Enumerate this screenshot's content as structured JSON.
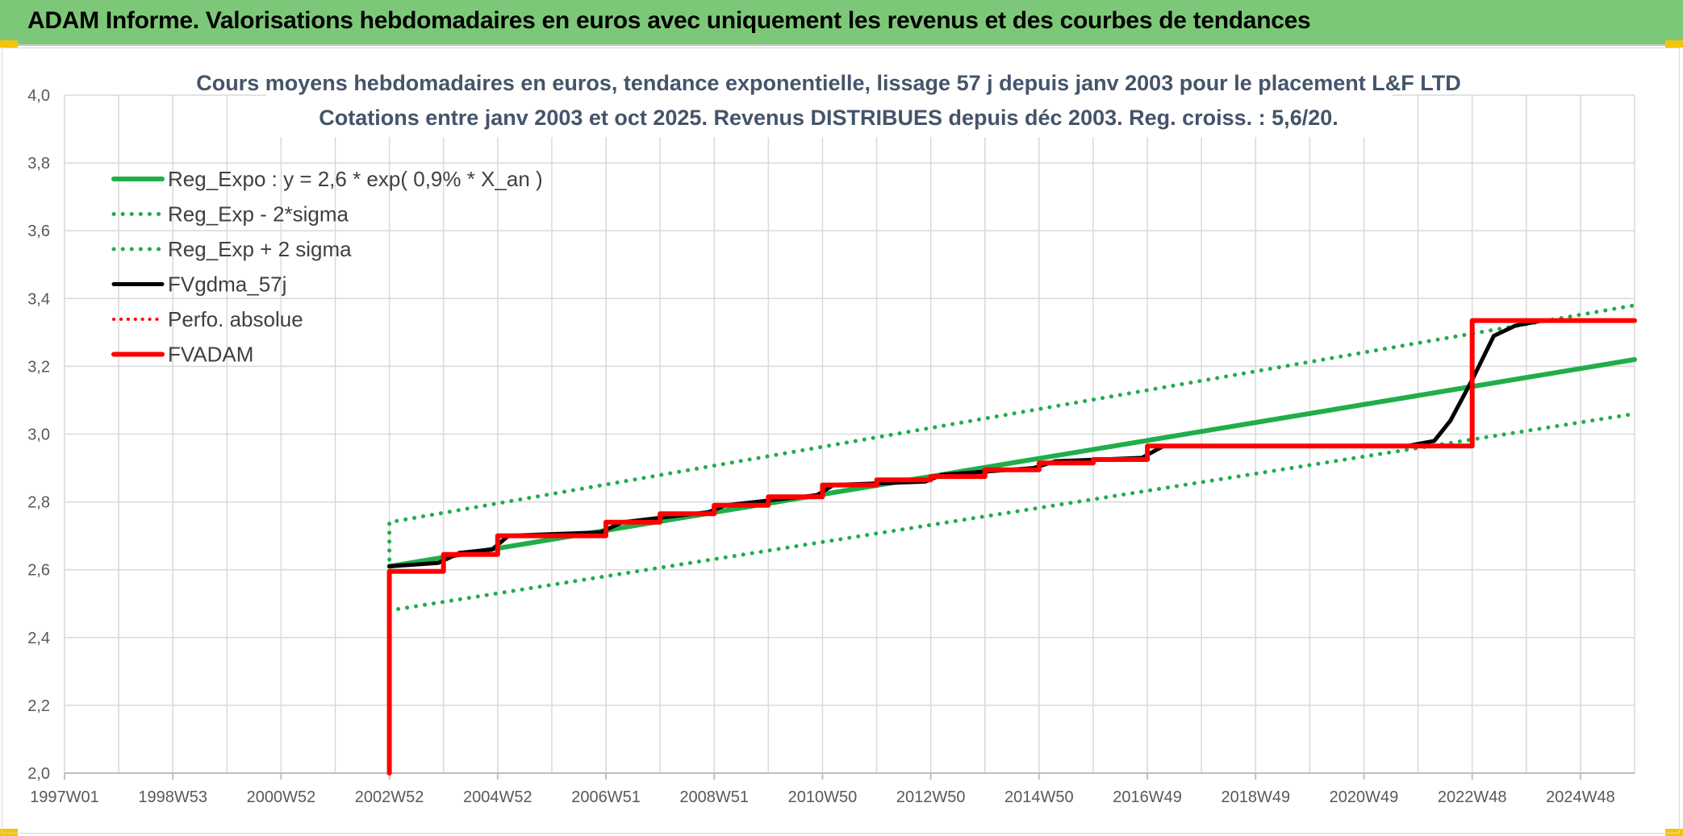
{
  "header": {
    "title": "ADAM Informe. Valorisations hebdomadaires en euros avec uniquement les revenus et des courbes de tendances"
  },
  "colors": {
    "banner": "#7dc878",
    "corner_accent": "#f2c40c",
    "green": "#1fae4b",
    "red": "#ff0000",
    "black": "#000000",
    "grid": "#d9d9d9",
    "title_text": "#44546a",
    "tick_text": "#595959"
  },
  "chart_data": {
    "type": "line",
    "title": "Cours moyens hebdomadaires en euros, tendance exponentielle, lissage 57 j depuis janv 2003 pour le placement L&F LTD",
    "subtitle": "Cotations entre janv 2003 et oct 2025. Revenus DISTRIBUES depuis déc 2003. Reg. croiss. : 5,6/20.",
    "xlabel": "",
    "ylabel": "",
    "x_axis": "year (decimal)",
    "xlim": [
      1997.0,
      2026.0
    ],
    "ylim": [
      2.0,
      4.0
    ],
    "y_ticks": [
      "2,0",
      "2,2",
      "2,4",
      "2,6",
      "2,8",
      "3,0",
      "3,2",
      "3,4",
      "3,6",
      "3,8",
      "4,0"
    ],
    "x_ticks": [
      {
        "x": 1997.0,
        "label": "1997W01"
      },
      {
        "x": 1999.0,
        "label": "1998W53"
      },
      {
        "x": 2001.0,
        "label": "2000W52"
      },
      {
        "x": 2003.0,
        "label": "2002W52"
      },
      {
        "x": 2005.0,
        "label": "2004W52"
      },
      {
        "x": 2007.0,
        "label": "2006W51"
      },
      {
        "x": 2009.0,
        "label": "2008W51"
      },
      {
        "x": 2011.0,
        "label": "2010W50"
      },
      {
        "x": 2013.0,
        "label": "2012W50"
      },
      {
        "x": 2015.0,
        "label": "2014W50"
      },
      {
        "x": 2017.0,
        "label": "2016W49"
      },
      {
        "x": 2019.0,
        "label": "2018W49"
      },
      {
        "x": 2021.0,
        "label": "2020W49"
      },
      {
        "x": 2023.0,
        "label": "2022W48"
      },
      {
        "x": 2025.0,
        "label": "2024W48"
      }
    ],
    "grid": true,
    "legend_position": "top-left",
    "series": [
      {
        "name": "Reg_Expo : y = 2,6 * exp( 0,9% *  X_an )",
        "color": "#1fae4b",
        "style": "solid",
        "width": 6,
        "x": [
          2003.0,
          2026.0
        ],
        "y": [
          2.61,
          3.22
        ]
      },
      {
        "name": "Reg_Exp - 2*sigma",
        "color": "#1fae4b",
        "style": "dotted",
        "width": 5,
        "x": [
          2003.0,
          2026.0
        ],
        "y": [
          2.48,
          3.06
        ]
      },
      {
        "name": "Reg_Exp + 2 sigma",
        "color": "#1fae4b",
        "style": "dotted",
        "width": 5,
        "x": [
          2003.0,
          2003.0,
          2026.0
        ],
        "y": [
          2.63,
          2.74,
          3.38
        ]
      },
      {
        "name": "FVgdma_57j",
        "color": "#000000",
        "style": "solid",
        "width": 5,
        "x": [
          2003.0,
          2003.9,
          2004.3,
          2004.9,
          2005.2,
          2006.9,
          2007.3,
          2008.9,
          2009.2,
          2010.9,
          2011.2,
          2012.9,
          2013.2,
          2014.9,
          2015.3,
          2016.9,
          2017.3,
          2021.8,
          2022.3,
          2022.6,
          2023.0,
          2023.4,
          2023.8,
          2024.3,
          2026.0
        ],
        "y": [
          2.61,
          2.62,
          2.65,
          2.66,
          2.7,
          2.71,
          2.74,
          2.77,
          2.79,
          2.82,
          2.85,
          2.86,
          2.88,
          2.9,
          2.92,
          2.93,
          2.965,
          2.965,
          2.98,
          3.04,
          3.16,
          3.29,
          3.32,
          3.335,
          3.335
        ]
      },
      {
        "name": "Perfo. absolue",
        "color": "#ff0000",
        "style": "dotted",
        "width": 4,
        "x": [],
        "y": []
      },
      {
        "name": "FVADAM",
        "color": "#ff0000",
        "style": "solid",
        "width": 6,
        "x": [
          2003.0,
          2003.0,
          2004.0,
          2004.0,
          2005.0,
          2005.0,
          2007.0,
          2007.0,
          2008.0,
          2008.0,
          2009.0,
          2009.0,
          2010.0,
          2010.0,
          2011.0,
          2011.0,
          2012.0,
          2012.0,
          2013.0,
          2013.0,
          2014.0,
          2014.0,
          2015.0,
          2015.0,
          2016.0,
          2016.0,
          2017.0,
          2017.0,
          2023.0,
          2023.0,
          2026.0
        ],
        "y": [
          2.0,
          2.595,
          2.595,
          2.645,
          2.645,
          2.7,
          2.7,
          2.74,
          2.74,
          2.765,
          2.765,
          2.79,
          2.79,
          2.815,
          2.815,
          2.85,
          2.85,
          2.865,
          2.865,
          2.875,
          2.875,
          2.895,
          2.895,
          2.915,
          2.915,
          2.925,
          2.925,
          2.965,
          2.965,
          3.335,
          3.335
        ]
      }
    ]
  }
}
